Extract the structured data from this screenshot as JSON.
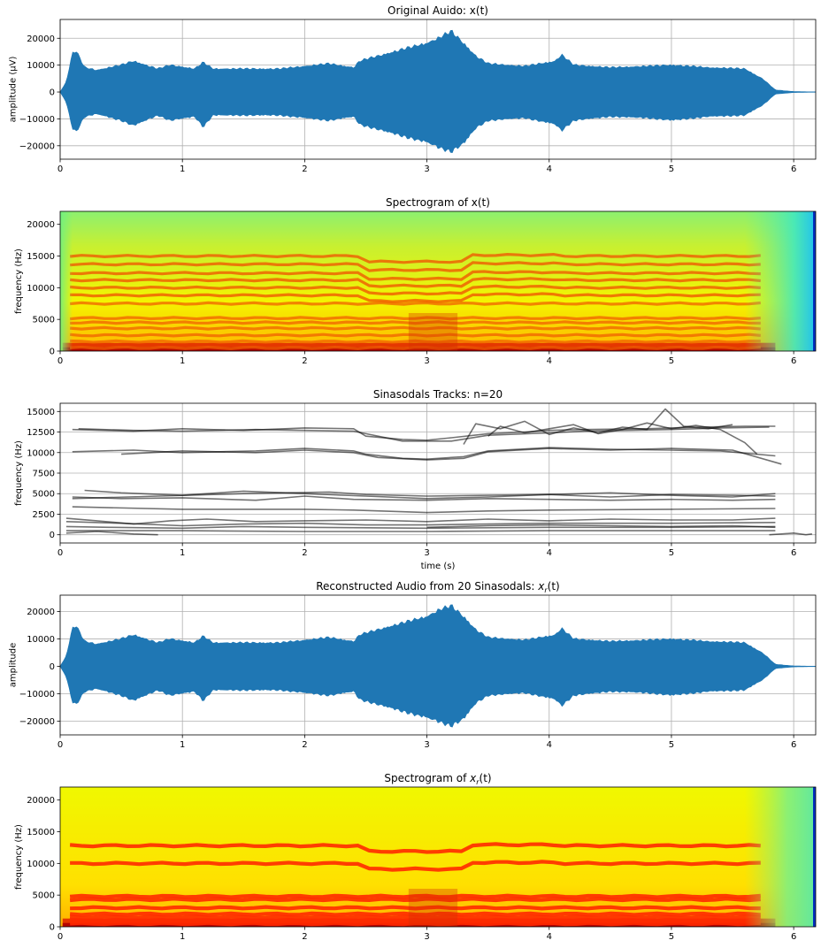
{
  "chart_data": [
    {
      "type": "area",
      "title": "Original Auido: x(t)",
      "xlabel": "",
      "ylabel": "amplitude (µV)",
      "xlim": [
        0,
        6.18
      ],
      "ylim": [
        -25000,
        27000
      ],
      "xticks": [
        0,
        1,
        2,
        3,
        4,
        5,
        6
      ],
      "yticks": [
        -20000,
        -10000,
        0,
        10000,
        20000
      ],
      "grid": true,
      "color": "#1f77b4",
      "envelope": {
        "t": [
          0,
          0.05,
          0.1,
          0.13,
          0.2,
          0.3,
          0.5,
          0.6,
          0.8,
          0.9,
          1.1,
          1.17,
          1.25,
          1.5,
          1.8,
          2.2,
          2.4,
          2.45,
          2.6,
          2.8,
          3.0,
          3.1,
          3.2,
          3.3,
          3.4,
          3.5,
          3.8,
          4.05,
          4.1,
          4.2,
          4.5,
          4.8,
          5.0,
          5.3,
          5.6,
          5.75,
          5.85,
          6.0,
          6.18
        ],
        "upper": [
          0,
          4000,
          15000,
          16000,
          9500,
          8500,
          10500,
          12000,
          9000,
          10500,
          9000,
          11500,
          9000,
          9000,
          9000,
          11000,
          9500,
          12000,
          14000,
          16500,
          19000,
          21000,
          23500,
          19000,
          14000,
          11000,
          10000,
          12000,
          14500,
          10500,
          9500,
          10000,
          10500,
          9500,
          9000,
          5000,
          800,
          200,
          0
        ],
        "lower": [
          0,
          -4000,
          -14000,
          -15500,
          -9500,
          -8500,
          -11000,
          -13000,
          -9000,
          -11000,
          -9500,
          -13500,
          -9000,
          -9000,
          -9000,
          -11000,
          -9500,
          -12500,
          -14500,
          -17000,
          -19500,
          -21500,
          -23000,
          -20000,
          -14000,
          -11000,
          -10000,
          -12500,
          -15000,
          -11000,
          -9500,
          -10000,
          -11000,
          -9500,
          -9000,
          -5000,
          -800,
          -200,
          0
        ]
      }
    },
    {
      "type": "heatmap",
      "title": "Spectrogram of x(t)",
      "xlabel": "",
      "ylabel": "frequency (Hz)",
      "xlim": [
        0,
        6.18
      ],
      "ylim": [
        0,
        22050
      ],
      "xticks": [
        0,
        1,
        2,
        3,
        4,
        5,
        6
      ],
      "yticks": [
        0,
        5000,
        10000,
        15000,
        20000
      ],
      "colormap": "jet",
      "bands_hz": [
        500,
        1500,
        2500,
        3600,
        4500,
        5200,
        7500,
        8800,
        10000,
        11200,
        12300,
        13700,
        15000
      ]
    },
    {
      "type": "line",
      "title": "Sinasodals Tracks: n=20",
      "xlabel": "time (s)",
      "ylabel": "frequency (Hz)",
      "xlim": [
        0,
        6.18
      ],
      "ylim": [
        -1000,
        16000
      ],
      "xticks": [
        0,
        1,
        2,
        3,
        4,
        5,
        6
      ],
      "yticks": [
        0,
        2500,
        5000,
        7500,
        10000,
        12500,
        15000
      ],
      "grid": true,
      "color": "#000000",
      "opacity": 0.55,
      "tracks": [
        {
          "t": [
            0.1,
            0.6,
            1.0,
            1.5,
            2.0,
            2.4,
            2.5,
            2.8,
            3.0,
            3.2,
            3.5,
            3.8,
            4.0,
            4.3,
            4.8,
            5.2,
            5.6,
            5.85
          ],
          "f": [
            12800,
            12600,
            12900,
            12700,
            13000,
            12900,
            12000,
            11600,
            11500,
            11800,
            12300,
            12500,
            12700,
            12800,
            12900,
            13100,
            13200,
            13200
          ]
        },
        {
          "t": [
            0.15,
            0.6,
            1.0,
            1.6,
            2.0,
            2.4,
            2.5,
            2.8,
            3.2,
            3.5,
            4.0,
            4.3,
            5.0,
            5.4,
            5.8
          ],
          "f": [
            12900,
            12700,
            12600,
            12800,
            12700,
            12600,
            12300,
            11400,
            11400,
            12100,
            12400,
            12600,
            12800,
            13000,
            13100
          ]
        },
        {
          "t": [
            0.1,
            0.6,
            1.0,
            1.6,
            2.0,
            2.4,
            2.5,
            2.8,
            3.0,
            3.3,
            3.5,
            4.0,
            4.5,
            5.0,
            5.4,
            5.85
          ],
          "f": [
            10100,
            10300,
            10000,
            10200,
            10500,
            10200,
            9800,
            9300,
            9200,
            9500,
            10200,
            10600,
            10400,
            10300,
            10200,
            9600
          ]
        },
        {
          "t": [
            0.5,
            1.0,
            1.6,
            2.0,
            2.4,
            2.6,
            3.0,
            3.3,
            3.5,
            4.0,
            4.5,
            5.0,
            5.5,
            5.9
          ],
          "f": [
            9800,
            10200,
            10000,
            10300,
            10000,
            9400,
            9100,
            9300,
            10100,
            10500,
            10300,
            10500,
            10300,
            8600
          ]
        },
        {
          "t": [
            3.3,
            3.4,
            3.6,
            3.8,
            4.0,
            4.2,
            4.4,
            4.6,
            4.8,
            4.95,
            5.1,
            5.3,
            5.5
          ],
          "f": [
            11000,
            13500,
            12900,
            13800,
            12200,
            13000,
            12400,
            13100,
            12800,
            15300,
            13200,
            12900,
            13400
          ]
        },
        {
          "t": [
            3.5,
            3.6,
            3.8,
            4.0,
            4.2,
            4.4,
            4.6,
            4.8,
            5.0,
            5.2,
            5.4,
            5.6,
            5.7
          ],
          "f": [
            12000,
            13200,
            12400,
            12900,
            13400,
            12300,
            12800,
            13600,
            12900,
            13300,
            12800,
            11200,
            9800
          ]
        },
        {
          "t": [
            0.1,
            0.8,
            1.5,
            2.2,
            2.5,
            3.0,
            3.5,
            4.0,
            4.5,
            5.0,
            5.5,
            5.85
          ],
          "f": [
            4400,
            4700,
            5000,
            5200,
            4900,
            4700,
            4800,
            4900,
            4600,
            4900,
            4800,
            4700
          ]
        },
        {
          "t": [
            0.1,
            0.5,
            1.0,
            1.6,
            2.0,
            2.4,
            3.0,
            3.5,
            4.0,
            4.5,
            5.0,
            5.5,
            5.85
          ],
          "f": [
            4600,
            4400,
            4500,
            4200,
            4700,
            4300,
            4200,
            4400,
            4300,
            4200,
            4300,
            4200,
            4300
          ]
        },
        {
          "t": [
            0.2,
            0.5,
            1.0,
            1.5,
            2.0,
            2.5,
            3.0,
            3.5,
            4.0,
            4.5,
            5.0,
            5.5,
            5.85
          ],
          "f": [
            5400,
            5100,
            4800,
            5300,
            5000,
            4700,
            4400,
            4600,
            4900,
            5100,
            4800,
            4600,
            5000
          ]
        },
        {
          "t": [
            0.1,
            1.0,
            2.0,
            2.4,
            3.0,
            3.5,
            4.0,
            5.0,
            5.85
          ],
          "f": [
            3400,
            3100,
            3100,
            3000,
            2700,
            2900,
            3000,
            3100,
            3200
          ]
        },
        {
          "t": [
            0.05,
            0.5,
            1.0,
            1.5,
            2.0,
            2.5,
            3.0,
            3.5,
            4.0,
            5.0,
            5.85
          ],
          "f": [
            1600,
            1400,
            1100,
            1300,
            1400,
            1200,
            1200,
            1300,
            1400,
            1400,
            1500
          ]
        },
        {
          "t": [
            0.05,
            0.4,
            1.0,
            1.5,
            2.0,
            3.0,
            4.0,
            5.0,
            5.85
          ],
          "f": [
            1000,
            900,
            800,
            1000,
            900,
            800,
            900,
            900,
            1000
          ]
        },
        {
          "t": [
            0.05,
            0.3,
            0.6,
            0.9,
            1.2,
            1.6,
            2.0,
            2.5,
            3.0,
            3.5,
            4.0,
            4.5,
            5.0,
            5.5,
            5.85
          ],
          "f": [
            2000,
            1700,
            1300,
            1700,
            1900,
            1600,
            1700,
            1800,
            1600,
            1900,
            1700,
            1900,
            1800,
            1800,
            2000
          ]
        },
        {
          "t": [
            0.05,
            1.0,
            2.0,
            3.0,
            4.0,
            5.0,
            5.85
          ],
          "f": [
            500,
            500,
            400,
            400,
            500,
            500,
            500
          ]
        },
        {
          "t": [
            0.05,
            0.3,
            0.6,
            0.8
          ],
          "f": [
            200,
            400,
            100,
            0
          ]
        },
        {
          "t": [
            3.0,
            3.5,
            4.0,
            4.5,
            5.0,
            5.5,
            5.85
          ],
          "f": [
            900,
            1100,
            1200,
            1100,
            1000,
            1100,
            900
          ]
        },
        {
          "t": [
            5.8,
            5.9,
            6.0,
            6.1,
            6.15
          ],
          "f": [
            0,
            100,
            200,
            0,
            100
          ]
        }
      ]
    },
    {
      "type": "area",
      "title": "Reconstructed Audio from 20 Sinasodals: x_r(t)",
      "xlabel": "",
      "ylabel": "amplitude",
      "xlim": [
        0,
        6.18
      ],
      "ylim": [
        -25000,
        26000
      ],
      "xticks": [
        0,
        1,
        2,
        3,
        4,
        5,
        6
      ],
      "yticks": [
        -20000,
        -10000,
        0,
        10000,
        20000
      ],
      "grid": true,
      "color": "#1f77b4",
      "envelope": {
        "t": [
          0,
          0.05,
          0.1,
          0.13,
          0.2,
          0.3,
          0.5,
          0.6,
          0.8,
          0.9,
          1.1,
          1.17,
          1.25,
          1.5,
          1.8,
          2.2,
          2.4,
          2.45,
          2.6,
          2.8,
          3.0,
          3.1,
          3.2,
          3.3,
          3.4,
          3.5,
          3.8,
          4.05,
          4.1,
          4.2,
          4.5,
          4.8,
          5.0,
          5.3,
          5.6,
          5.75,
          5.85,
          6.0,
          6.18
        ],
        "upper": [
          0,
          4000,
          14500,
          15500,
          9500,
          8500,
          10500,
          12000,
          9000,
          10500,
          9000,
          11500,
          9000,
          9000,
          9000,
          11000,
          9500,
          12000,
          14000,
          16500,
          19000,
          21500,
          23000,
          19000,
          14000,
          11000,
          10000,
          12000,
          14500,
          10500,
          9500,
          10000,
          10500,
          9500,
          9000,
          5000,
          800,
          200,
          0
        ],
        "lower": [
          0,
          -4000,
          -13500,
          -14500,
          -9500,
          -8500,
          -11000,
          -13000,
          -9000,
          -11000,
          -9500,
          -13000,
          -9000,
          -9000,
          -9000,
          -11000,
          -9500,
          -12500,
          -14500,
          -17000,
          -19500,
          -21000,
          -22500,
          -20000,
          -14000,
          -11000,
          -10000,
          -12500,
          -15000,
          -11000,
          -9500,
          -10000,
          -11000,
          -9500,
          -9000,
          -5000,
          -800,
          -200,
          0
        ]
      }
    },
    {
      "type": "heatmap",
      "title": "Spectrogram of x_r(t)",
      "xlabel": "",
      "ylabel": "frequency (Hz)",
      "xlim": [
        0,
        6.18
      ],
      "ylim": [
        0,
        22050
      ],
      "xticks": [
        0,
        1,
        2,
        3,
        4,
        5,
        6
      ],
      "yticks": [
        0,
        5000,
        10000,
        15000,
        20000
      ],
      "colormap": "jet",
      "bands_hz": [
        500,
        1000,
        1500,
        2000,
        3000,
        4300,
        4800,
        10000,
        12800
      ]
    }
  ]
}
